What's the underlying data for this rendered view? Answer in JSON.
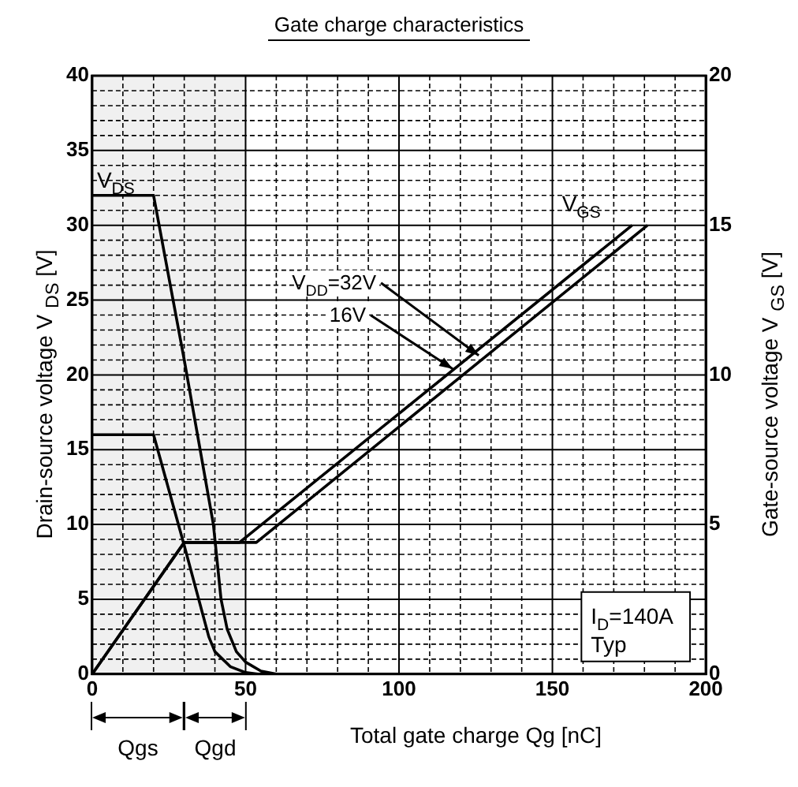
{
  "chart_data": {
    "type": "line",
    "title": "Gate charge characteristics",
    "xlabel": "Total gate charge   Qg  [nC]",
    "ylabel": "Drain-source voltage  V $_{DS}$  [V]",
    "y2label": "Gate-source voltage  V $_{GS}$  [V]",
    "series": [
      {
        "name": "V$_{DS}$",
        "color": "#000000",
        "x": [
          0,
          20,
          30,
          39.5,
          42,
          44,
          47,
          50,
          55,
          60
        ],
        "values": [
          32,
          32,
          21,
          10,
          5,
          3,
          1.5,
          0.8,
          0.2,
          0
        ]
      },
      {
        "color": "#000000",
        "x": [
          0,
          20,
          30,
          38,
          40,
          45,
          50,
          54
        ],
        "values": [
          16,
          16,
          8.6,
          2.5,
          1.5,
          0.5,
          0.1,
          0
        ]
      },
      {
        "color": "#000000",
        "axis": "y2",
        "x": [
          0,
          30,
          53.5,
          181
        ],
        "values": [
          0,
          4.4,
          4.4,
          15
        ]
      },
      {
        "name": "V$_{GS}$",
        "color": "#000000",
        "axis": "y2",
        "x": [
          0,
          30,
          48,
          176
        ],
        "values": [
          0,
          4.4,
          4.4,
          15
        ]
      }
    ],
    "xlim": [
      0,
      200
    ],
    "ylim": [
      0,
      40
    ],
    "y2lim": [
      0,
      20
    ],
    "xticks": [
      0,
      {
        "value": 10,
        "label": null
      },
      {
        "value": 20,
        "label": null
      },
      {
        "value": 30,
        "label": null
      },
      {
        "value": 40,
        "label": null
      },
      50,
      {
        "value": 60,
        "label": null
      },
      {
        "value": 70,
        "label": null
      },
      {
        "value": 80,
        "label": null
      },
      {
        "value": 90,
        "label": null
      },
      100,
      {
        "value": 110,
        "label": null
      },
      {
        "value": 120,
        "label": null
      },
      {
        "value": 130,
        "label": null
      },
      {
        "value": 140,
        "label": null
      },
      150,
      {
        "value": 160,
        "label": null
      },
      {
        "value": 170,
        "label": null
      },
      {
        "value": 180,
        "label": null
      },
      {
        "value": 190,
        "label": null
      },
      200
    ],
    "yticks": [
      0,
      {
        "value": 1,
        "label": null
      },
      {
        "value": 2,
        "label": null
      },
      {
        "value": 3,
        "label": null
      },
      {
        "value": 4,
        "label": null
      },
      5,
      {
        "value": 6,
        "label": null
      },
      {
        "value": 7,
        "label": null
      },
      {
        "value": 8,
        "label": null
      },
      {
        "value": 9,
        "label": null
      },
      10,
      {
        "value": 11,
        "label": null
      },
      {
        "value": 12,
        "label": null
      },
      {
        "value": 13,
        "label": null
      },
      {
        "value": 14,
        "label": null
      },
      15,
      {
        "value": 16,
        "label": null
      },
      {
        "value": 17,
        "label": null
      },
      {
        "value": 18,
        "label": null
      },
      {
        "value": 19,
        "label": null
      },
      20,
      {
        "value": 21,
        "label": null
      },
      {
        "value": 22,
        "label": null
      },
      {
        "value": 23,
        "label": null
      },
      {
        "value": 24,
        "label": null
      },
      25,
      {
        "value": 26,
        "label": null
      },
      {
        "value": 27,
        "label": null
      },
      {
        "value": 28,
        "label": null
      },
      {
        "value": 29,
        "label": null
      },
      30,
      {
        "value": 31,
        "label": null
      },
      {
        "value": 32,
        "label": null
      },
      {
        "value": 33,
        "label": null
      },
      {
        "value": 34,
        "label": null
      },
      35,
      {
        "value": 36,
        "label": null
      },
      {
        "value": 37,
        "label": null
      },
      {
        "value": 38,
        "label": null
      },
      {
        "value": 39,
        "label": null
      },
      40
    ],
    "y2ticks": [
      0,
      5,
      10,
      15,
      20
    ],
    "annotations": [
      {
        "text": "V$_{DD}$=32V",
        "x": 126,
        "y": 21.3
      },
      {
        "text": "16V",
        "x": 117.5,
        "y": 20.4
      },
      "Qgs",
      "Qgd",
      "I$_{D}$=140A",
      "Typ"
    ],
    "bands": [
      {
        "axis": "x",
        "from": 0,
        "to": 30
      },
      {
        "axis": "x",
        "from": 30,
        "to": 50
      }
    ],
    "grid": true,
    "legend": false,
    "marker": "none",
    "line_style": "solid"
  }
}
